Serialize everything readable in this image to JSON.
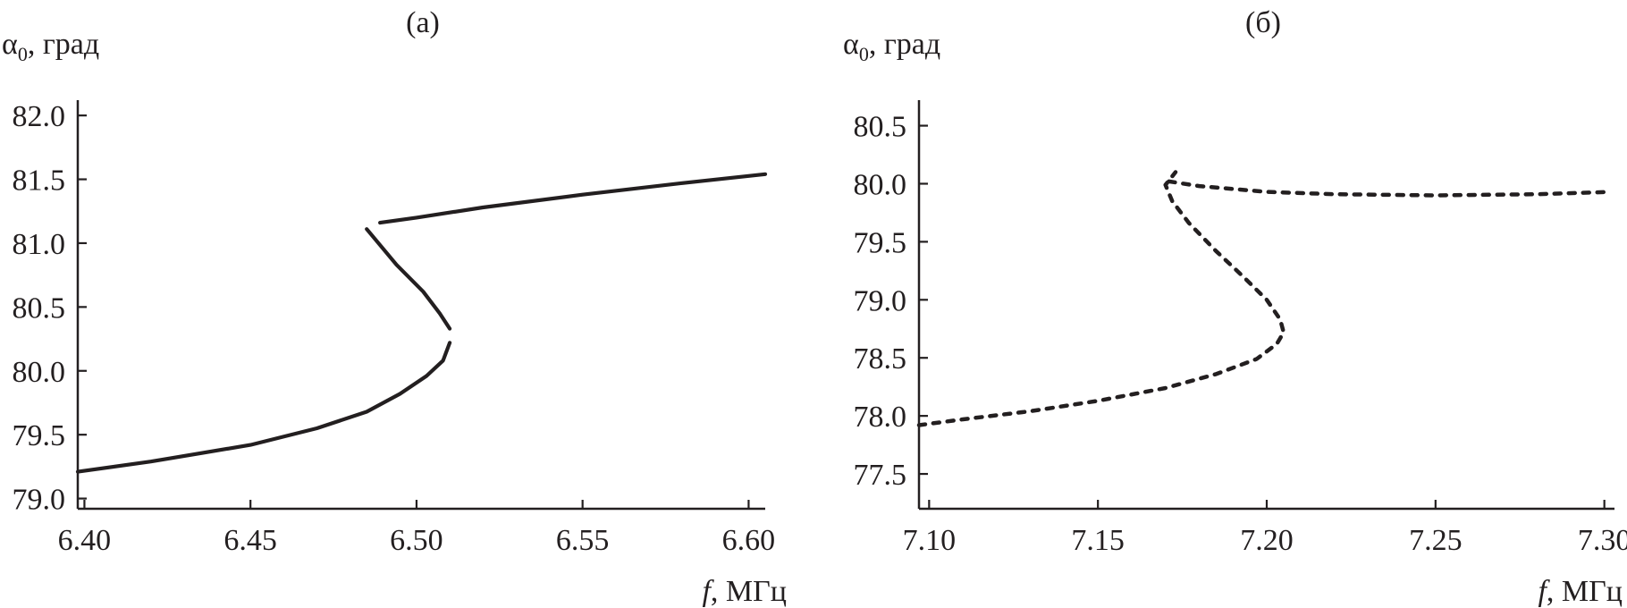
{
  "chart_data": [
    {
      "type": "line",
      "panel_label": "(а)",
      "ylabel": {
        "symbol": "α",
        "sub": "0",
        "unit": ", град"
      },
      "xlabel": {
        "symbol": "f",
        "unit": ", МГц"
      },
      "xlim": [
        6.398,
        6.605
      ],
      "ylim": [
        78.92,
        82.12
      ],
      "xticks": [
        "6.40",
        "6.45",
        "6.50",
        "6.55",
        "6.60"
      ],
      "xtick_values": [
        6.4,
        6.45,
        6.5,
        6.55,
        6.6
      ],
      "yticks": [
        "79.0",
        "79.5",
        "80.0",
        "80.5",
        "81.0",
        "81.5",
        "82.0"
      ],
      "ytick_values": [
        79.0,
        79.5,
        80.0,
        80.5,
        81.0,
        81.5,
        82.0
      ],
      "series": [
        {
          "line_style": "solid",
          "color": "#231f20",
          "segments": [
            [
              [
                6.398,
                79.21
              ],
              [
                6.42,
                79.29
              ],
              [
                6.45,
                79.42
              ],
              [
                6.47,
                79.55
              ],
              [
                6.485,
                79.68
              ],
              [
                6.495,
                79.82
              ],
              [
                6.503,
                79.96
              ],
              [
                6.508,
                80.08
              ],
              [
                6.51,
                80.22
              ]
            ],
            [
              [
                6.51,
                80.33
              ],
              [
                6.507,
                80.45
              ],
              [
                6.502,
                80.62
              ],
              [
                6.494,
                80.83
              ],
              [
                6.485,
                81.11
              ]
            ],
            [
              [
                6.489,
                81.16
              ],
              [
                6.5,
                81.2
              ],
              [
                6.52,
                81.28
              ],
              [
                6.55,
                81.38
              ],
              [
                6.58,
                81.47
              ],
              [
                6.605,
                81.54
              ]
            ]
          ]
        }
      ]
    },
    {
      "type": "line",
      "panel_label": "(б)",
      "ylabel": {
        "symbol": "α",
        "sub": "0",
        "unit": ", град"
      },
      "xlabel": {
        "symbol": "f",
        "unit": ", МГц"
      },
      "xlim": [
        7.097,
        7.303
      ],
      "ylim": [
        77.2,
        80.72
      ],
      "xticks": [
        "7.10",
        "7.15",
        "7.20",
        "7.25",
        "7.30"
      ],
      "xtick_values": [
        7.1,
        7.15,
        7.2,
        7.25,
        7.3
      ],
      "yticks": [
        "77.5",
        "78.0",
        "78.5",
        "79.0",
        "79.5",
        "80.0",
        "80.5"
      ],
      "ytick_values": [
        77.5,
        78.0,
        78.5,
        79.0,
        79.5,
        80.0,
        80.5
      ],
      "series": [
        {
          "line_style": "dashed",
          "color": "#231f20",
          "segments": [
            [
              [
                7.097,
                77.92
              ],
              [
                7.11,
                77.97
              ],
              [
                7.13,
                78.04
              ],
              [
                7.15,
                78.13
              ],
              [
                7.17,
                78.24
              ],
              [
                7.185,
                78.36
              ],
              [
                7.197,
                78.49
              ],
              [
                7.203,
                78.62
              ],
              [
                7.205,
                78.72
              ],
              [
                7.204,
                78.83
              ],
              [
                7.2,
                79.0
              ],
              [
                7.193,
                79.2
              ],
              [
                7.185,
                79.42
              ],
              [
                7.177,
                79.66
              ],
              [
                7.172,
                79.85
              ],
              [
                7.17,
                79.99
              ],
              [
                7.173,
                80.1
              ]
            ],
            [
              [
                7.171,
                80.02
              ],
              [
                7.18,
                79.98
              ],
              [
                7.2,
                79.93
              ],
              [
                7.22,
                79.91
              ],
              [
                7.25,
                79.9
              ],
              [
                7.28,
                79.91
              ],
              [
                7.302,
                79.93
              ]
            ]
          ]
        }
      ]
    }
  ]
}
